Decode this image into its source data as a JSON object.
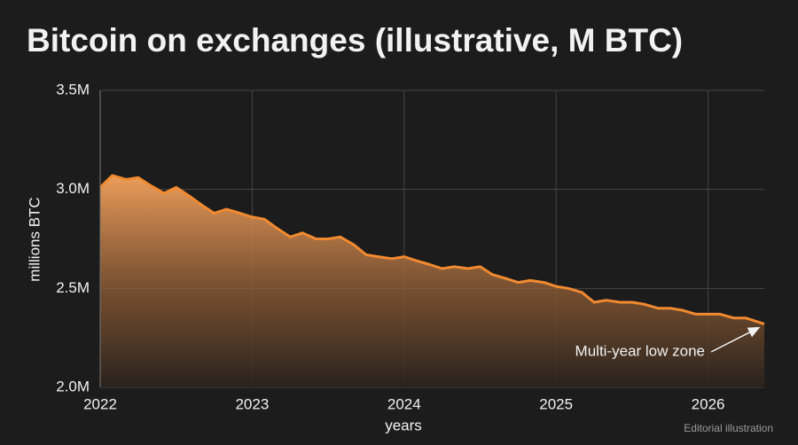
{
  "chart_data": {
    "type": "area",
    "title": "Bitcoin on exchanges (illustrative, M BTC)",
    "x_label": "years",
    "y_label": "millions BTC",
    "annotation": "Multi-year low zone",
    "footnote": "Editorial illustration",
    "color": "#f28a30",
    "grid": true,
    "xlim": [
      2022,
      2026.37
    ],
    "xticks": [
      2022,
      2023,
      2024,
      2025,
      2026
    ],
    "ylim": [
      2.0,
      3.5
    ],
    "yticks": [
      {
        "value": 2.0,
        "label": "2.0M"
      },
      {
        "value": 2.5,
        "label": "2.5M"
      },
      {
        "value": 3.0,
        "label": "3.0M"
      },
      {
        "value": 3.5,
        "label": "3.5M"
      }
    ],
    "x": [
      2022.0,
      2022.08,
      2022.17,
      2022.25,
      2022.33,
      2022.42,
      2022.5,
      2022.58,
      2022.67,
      2022.75,
      2022.83,
      2022.92,
      2023.0,
      2023.08,
      2023.17,
      2023.25,
      2023.33,
      2023.42,
      2023.5,
      2023.58,
      2023.67,
      2023.75,
      2023.83,
      2023.92,
      2024.0,
      2024.08,
      2024.17,
      2024.25,
      2024.33,
      2024.42,
      2024.5,
      2024.58,
      2024.67,
      2024.75,
      2024.83,
      2024.92,
      2025.0,
      2025.08,
      2025.17,
      2025.25,
      2025.33,
      2025.42,
      2025.5,
      2025.58,
      2025.67,
      2025.75,
      2025.83,
      2025.92,
      2026.0,
      2026.08,
      2026.17,
      2026.25,
      2026.37
    ],
    "values": [
      3.01,
      3.07,
      3.05,
      3.06,
      3.02,
      2.98,
      3.01,
      2.97,
      2.92,
      2.88,
      2.9,
      2.88,
      2.86,
      2.85,
      2.8,
      2.76,
      2.78,
      2.75,
      2.75,
      2.76,
      2.72,
      2.67,
      2.66,
      2.65,
      2.66,
      2.64,
      2.62,
      2.6,
      2.61,
      2.6,
      2.61,
      2.57,
      2.55,
      2.53,
      2.54,
      2.53,
      2.51,
      2.5,
      2.48,
      2.43,
      2.44,
      2.43,
      2.43,
      2.42,
      2.4,
      2.4,
      2.39,
      2.37,
      2.37,
      2.37,
      2.35,
      2.35,
      2.32
    ]
  }
}
